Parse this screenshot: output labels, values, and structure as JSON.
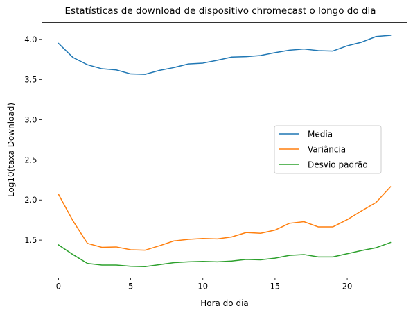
{
  "chart_data": {
    "type": "line",
    "title": "Estatísticas de download de dispositivo chromecast o longo do dia",
    "xlabel": "Hora do dia",
    "ylabel": "Log10(taxa Download)",
    "xlim": [
      -1.15,
      24.15
    ],
    "ylim": [
      1.03,
      4.21
    ],
    "xticks": [
      0,
      5,
      10,
      15,
      20
    ],
    "xtick_labels": [
      "0",
      "5",
      "10",
      "15",
      "20"
    ],
    "yticks": [
      1.5,
      2.0,
      2.5,
      3.0,
      3.5,
      4.0
    ],
    "ytick_labels": [
      "1.5",
      "2.0",
      "2.5",
      "3.0",
      "3.5",
      "4.0"
    ],
    "grid": false,
    "legend_position": "center-right",
    "x": [
      0,
      1,
      2,
      3,
      4,
      5,
      6,
      7,
      8,
      9,
      10,
      11,
      12,
      13,
      14,
      15,
      16,
      17,
      18,
      19,
      20,
      21,
      22,
      23
    ],
    "series": [
      {
        "name": "Media",
        "color": "#1f77b4",
        "values": [
          3.95,
          3.775,
          3.685,
          3.635,
          3.62,
          3.57,
          3.565,
          3.615,
          3.65,
          3.695,
          3.705,
          3.74,
          3.78,
          3.785,
          3.8,
          3.835,
          3.865,
          3.88,
          3.86,
          3.855,
          3.92,
          3.965,
          4.035,
          4.05
        ]
      },
      {
        "name": "Variância",
        "color": "#ff7f0e",
        "values": [
          2.07,
          1.74,
          1.46,
          1.41,
          1.415,
          1.38,
          1.375,
          1.43,
          1.49,
          1.51,
          1.52,
          1.515,
          1.54,
          1.595,
          1.585,
          1.625,
          1.71,
          1.73,
          1.665,
          1.665,
          1.755,
          1.865,
          1.97,
          2.165
        ]
      },
      {
        "name": "Desvio padrão",
        "color": "#2ca02c",
        "values": [
          1.44,
          1.32,
          1.21,
          1.19,
          1.19,
          1.175,
          1.17,
          1.195,
          1.22,
          1.23,
          1.235,
          1.23,
          1.24,
          1.26,
          1.255,
          1.275,
          1.31,
          1.32,
          1.29,
          1.29,
          1.33,
          1.37,
          1.405,
          1.47
        ]
      }
    ]
  }
}
